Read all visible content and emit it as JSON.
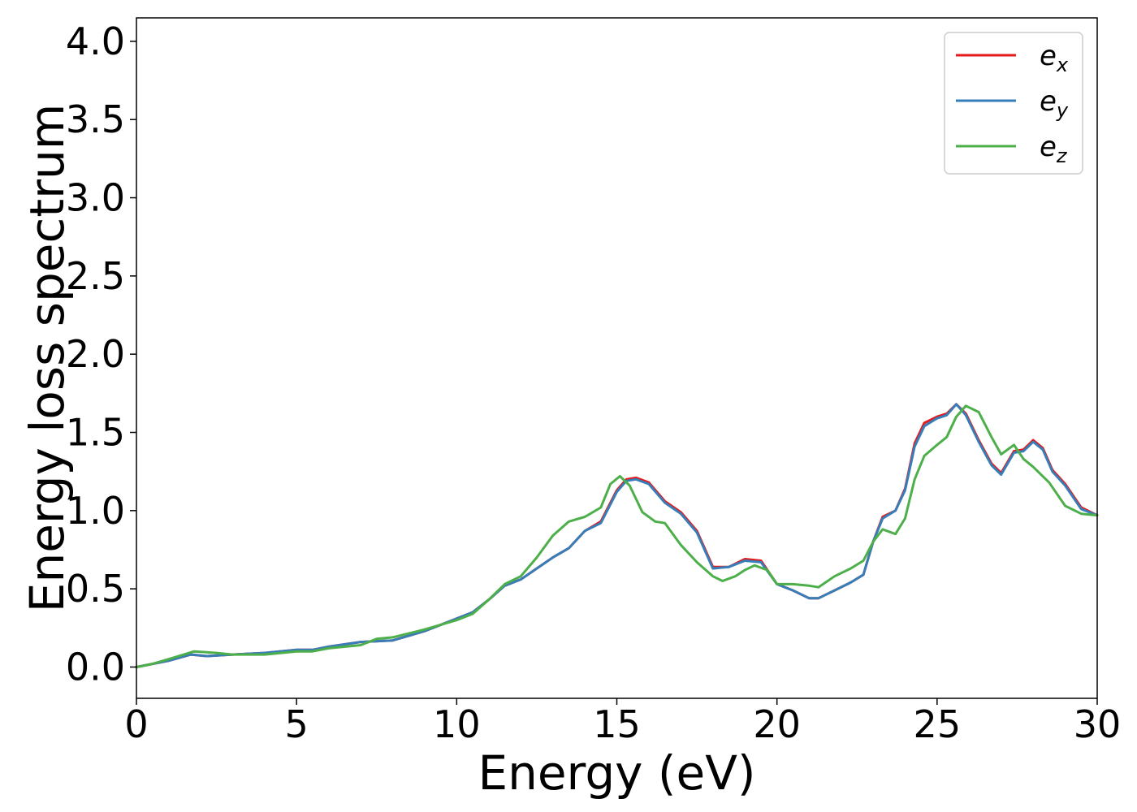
{
  "chart_data": {
    "type": "line",
    "title": "",
    "xlabel": "Energy (eV)",
    "ylabel": "Energy loss spectrum",
    "xlim": [
      0,
      30
    ],
    "ylim": [
      -0.2,
      4.15
    ],
    "xticks": [
      0,
      5,
      10,
      15,
      20,
      25,
      30
    ],
    "xtick_labels": [
      "0",
      "5",
      "10",
      "15",
      "20",
      "25",
      "30"
    ],
    "yticks": [
      0.0,
      0.5,
      1.0,
      1.5,
      2.0,
      2.5,
      3.0,
      3.5,
      4.0
    ],
    "ytick_labels": [
      "0.0",
      "0.5",
      "1.0",
      "1.5",
      "2.0",
      "2.5",
      "3.0",
      "3.5",
      "4.0"
    ],
    "grid": false,
    "legend_position": "top-right",
    "series": [
      {
        "name": "e_x",
        "label_base": "e",
        "label_sub": "x",
        "color": "#e41a1c",
        "x": [
          0,
          0.5,
          1.0,
          1.7,
          2.2,
          3.0,
          4.0,
          5.0,
          5.5,
          6.0,
          7.0,
          8.0,
          9.0,
          10.0,
          10.5,
          11.0,
          11.5,
          12.0,
          12.5,
          13.0,
          13.5,
          14.0,
          14.5,
          15.0,
          15.3,
          15.6,
          16.0,
          16.5,
          17.0,
          17.5,
          18.0,
          18.5,
          19.0,
          19.5,
          20.0,
          20.5,
          21.0,
          21.3,
          21.8,
          22.3,
          22.7,
          23.0,
          23.3,
          23.7,
          24.0,
          24.3,
          24.6,
          25.0,
          25.3,
          25.6,
          25.9,
          26.3,
          26.7,
          27.0,
          27.4,
          27.7,
          28.0,
          28.3,
          28.6,
          29.0,
          29.5,
          30.0
        ],
        "y": [
          0.0,
          0.02,
          0.04,
          0.08,
          0.07,
          0.08,
          0.09,
          0.11,
          0.11,
          0.13,
          0.16,
          0.17,
          0.23,
          0.31,
          0.35,
          0.43,
          0.52,
          0.56,
          0.63,
          0.7,
          0.76,
          0.87,
          0.93,
          1.13,
          1.2,
          1.21,
          1.18,
          1.06,
          0.99,
          0.87,
          0.64,
          0.64,
          0.69,
          0.68,
          0.53,
          0.49,
          0.44,
          0.44,
          0.49,
          0.54,
          0.59,
          0.8,
          0.96,
          1.0,
          1.14,
          1.43,
          1.56,
          1.6,
          1.62,
          1.68,
          1.62,
          1.45,
          1.3,
          1.24,
          1.38,
          1.39,
          1.45,
          1.4,
          1.26,
          1.17,
          1.02,
          0.97
        ],
        "values": [
          0.0,
          0.02,
          0.04,
          0.08,
          0.07,
          0.08,
          0.09,
          0.11,
          0.11,
          0.13,
          0.16,
          0.17,
          0.23,
          0.31,
          0.35,
          0.43,
          0.52,
          0.56,
          0.63,
          0.7,
          0.76,
          0.87,
          0.93,
          1.13,
          1.2,
          1.21,
          1.18,
          1.06,
          0.99,
          0.87,
          0.64,
          0.64,
          0.69,
          0.68,
          0.53,
          0.49,
          0.44,
          0.44,
          0.49,
          0.54,
          0.59,
          0.8,
          0.96,
          1.0,
          1.14,
          1.43,
          1.56,
          1.6,
          1.62,
          1.68,
          1.62,
          1.45,
          1.3,
          1.24,
          1.38,
          1.39,
          1.45,
          1.4,
          1.26,
          1.17,
          1.02,
          0.97
        ]
      },
      {
        "name": "e_y",
        "label_base": "e",
        "label_sub": "y",
        "color": "#377eb8",
        "x": [
          0,
          0.5,
          1.0,
          1.7,
          2.2,
          3.0,
          4.0,
          5.0,
          5.5,
          6.0,
          7.0,
          8.0,
          9.0,
          10.0,
          10.5,
          11.0,
          11.5,
          12.0,
          12.5,
          13.0,
          13.5,
          14.0,
          14.5,
          15.0,
          15.3,
          15.6,
          16.0,
          16.5,
          17.0,
          17.5,
          18.0,
          18.5,
          19.0,
          19.5,
          20.0,
          20.5,
          21.0,
          21.3,
          21.8,
          22.3,
          22.7,
          23.0,
          23.3,
          23.7,
          24.0,
          24.3,
          24.6,
          25.0,
          25.3,
          25.6,
          25.9,
          26.3,
          26.7,
          27.0,
          27.4,
          27.7,
          28.0,
          28.3,
          28.6,
          29.0,
          29.5,
          30.0
        ],
        "y": [
          0.0,
          0.02,
          0.04,
          0.08,
          0.07,
          0.08,
          0.09,
          0.11,
          0.11,
          0.13,
          0.16,
          0.17,
          0.23,
          0.31,
          0.35,
          0.43,
          0.52,
          0.56,
          0.63,
          0.7,
          0.76,
          0.87,
          0.92,
          1.12,
          1.19,
          1.2,
          1.17,
          1.05,
          0.98,
          0.86,
          0.63,
          0.64,
          0.68,
          0.67,
          0.53,
          0.49,
          0.44,
          0.44,
          0.49,
          0.54,
          0.59,
          0.8,
          0.95,
          1.0,
          1.13,
          1.41,
          1.54,
          1.59,
          1.61,
          1.68,
          1.61,
          1.44,
          1.29,
          1.23,
          1.37,
          1.38,
          1.44,
          1.39,
          1.25,
          1.16,
          1.01,
          0.97
        ],
        "values": [
          0.0,
          0.02,
          0.04,
          0.08,
          0.07,
          0.08,
          0.09,
          0.11,
          0.11,
          0.13,
          0.16,
          0.17,
          0.23,
          0.31,
          0.35,
          0.43,
          0.52,
          0.56,
          0.63,
          0.7,
          0.76,
          0.87,
          0.92,
          1.12,
          1.19,
          1.2,
          1.17,
          1.05,
          0.98,
          0.86,
          0.63,
          0.64,
          0.68,
          0.67,
          0.53,
          0.49,
          0.44,
          0.44,
          0.49,
          0.54,
          0.59,
          0.8,
          0.95,
          1.0,
          1.13,
          1.41,
          1.54,
          1.59,
          1.61,
          1.68,
          1.61,
          1.44,
          1.29,
          1.23,
          1.37,
          1.38,
          1.44,
          1.39,
          1.25,
          1.16,
          1.01,
          0.97
        ]
      },
      {
        "name": "e_z",
        "label_base": "e",
        "label_sub": "z",
        "color": "#4daf4a",
        "x": [
          0,
          0.5,
          1.0,
          1.8,
          2.5,
          3.0,
          4.0,
          5.0,
          5.5,
          6.0,
          7.0,
          7.5,
          8.0,
          9.0,
          10.0,
          10.5,
          11.0,
          11.5,
          12.0,
          12.5,
          13.0,
          13.5,
          14.0,
          14.5,
          14.8,
          15.1,
          15.4,
          15.8,
          16.2,
          16.5,
          17.0,
          17.5,
          18.0,
          18.3,
          18.7,
          19.0,
          19.3,
          19.7,
          20.0,
          20.5,
          21.0,
          21.3,
          21.8,
          22.3,
          22.7,
          23.0,
          23.3,
          23.7,
          24.0,
          24.3,
          24.6,
          25.0,
          25.3,
          25.6,
          25.9,
          26.3,
          26.7,
          27.0,
          27.4,
          27.7,
          28.0,
          28.5,
          29.0,
          29.5,
          30.0
        ],
        "y": [
          0.0,
          0.02,
          0.05,
          0.1,
          0.09,
          0.08,
          0.08,
          0.1,
          0.1,
          0.12,
          0.14,
          0.18,
          0.19,
          0.24,
          0.3,
          0.34,
          0.43,
          0.53,
          0.58,
          0.7,
          0.84,
          0.93,
          0.96,
          1.02,
          1.17,
          1.22,
          1.16,
          0.99,
          0.93,
          0.92,
          0.78,
          0.67,
          0.58,
          0.55,
          0.58,
          0.62,
          0.65,
          0.62,
          0.53,
          0.53,
          0.52,
          0.51,
          0.58,
          0.63,
          0.68,
          0.8,
          0.88,
          0.85,
          0.95,
          1.2,
          1.35,
          1.42,
          1.47,
          1.6,
          1.67,
          1.63,
          1.47,
          1.36,
          1.42,
          1.33,
          1.28,
          1.18,
          1.03,
          0.98,
          0.97
        ],
        "values": [
          0.0,
          0.02,
          0.05,
          0.1,
          0.09,
          0.08,
          0.08,
          0.1,
          0.1,
          0.12,
          0.14,
          0.18,
          0.19,
          0.24,
          0.3,
          0.34,
          0.43,
          0.53,
          0.58,
          0.7,
          0.84,
          0.93,
          0.96,
          1.02,
          1.17,
          1.22,
          1.16,
          0.99,
          0.93,
          0.92,
          0.78,
          0.67,
          0.58,
          0.55,
          0.58,
          0.62,
          0.65,
          0.62,
          0.53,
          0.53,
          0.52,
          0.51,
          0.58,
          0.63,
          0.68,
          0.8,
          0.88,
          0.85,
          0.95,
          1.2,
          1.35,
          1.42,
          1.47,
          1.6,
          1.67,
          1.63,
          1.47,
          1.36,
          1.42,
          1.33,
          1.28,
          1.18,
          1.03,
          0.98,
          0.97
        ]
      }
    ]
  }
}
